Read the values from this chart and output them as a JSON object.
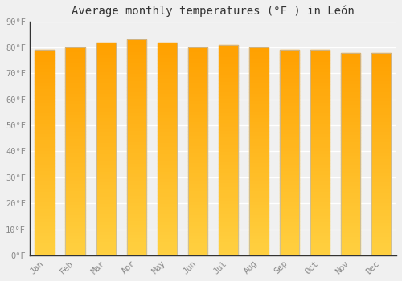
{
  "title": "Average monthly temperatures (°F ) in León",
  "months": [
    "Jan",
    "Feb",
    "Mar",
    "Apr",
    "May",
    "Jun",
    "Jul",
    "Aug",
    "Sep",
    "Oct",
    "Nov",
    "Dec"
  ],
  "values": [
    79,
    80,
    82,
    83,
    82,
    80,
    81,
    80,
    79,
    79,
    78,
    78
  ],
  "bar_color_top": "#FFA000",
  "bar_color_bottom": "#FFD040",
  "bar_edge_color": "#BBBBBB",
  "background_color": "#f0f0f0",
  "plot_bg_color": "#f0f0f0",
  "grid_color": "#ffffff",
  "ylim": [
    0,
    90
  ],
  "yticks": [
    0,
    10,
    20,
    30,
    40,
    50,
    60,
    70,
    80,
    90
  ],
  "ytick_labels": [
    "0°F",
    "10°F",
    "20°F",
    "30°F",
    "40°F",
    "50°F",
    "60°F",
    "70°F",
    "80°F",
    "90°F"
  ],
  "title_fontsize": 10,
  "tick_fontsize": 7.5,
  "tick_color": "#888888",
  "spine_color": "#333333",
  "font_family": "monospace"
}
